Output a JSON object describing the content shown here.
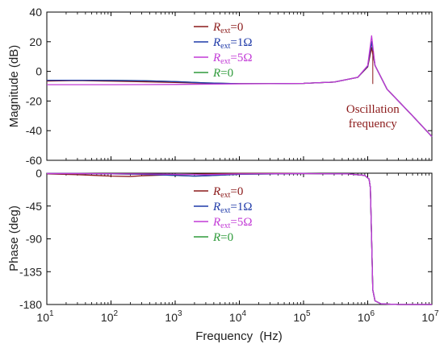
{
  "chart_data": [
    {
      "type": "line",
      "ylabel": "Magnitude (dB)",
      "xscale": "log",
      "xlim": [
        10,
        10000000
      ],
      "ylim": [
        -60,
        40
      ],
      "yticks": [
        -60,
        -40,
        -20,
        0,
        20,
        40
      ],
      "ytick_labels": [
        "-60",
        "-40",
        "-20",
        "0",
        "20",
        "40"
      ],
      "grid": false,
      "legend_position": "upper-center",
      "series": [
        {
          "name": "R_ext=0",
          "legend": {
            "sym": "R",
            "sub": "ext",
            "rest": "=0"
          },
          "color": "#8b1a1a",
          "x": [
            10,
            30,
            100,
            300,
            1000,
            3000,
            10000,
            30000,
            100000,
            300000,
            700000,
            1000000,
            1150000,
            1300000,
            2000000,
            5000000,
            10000000
          ],
          "y": [
            -6.5,
            -6.2,
            -6.6,
            -7.0,
            -7.5,
            -8.0,
            -8.3,
            -8.3,
            -8.1,
            -7.2,
            -4.0,
            3.0,
            16.0,
            4.0,
            -12.0,
            -30.0,
            -44.0
          ]
        },
        {
          "name": "R_ext=1Ω",
          "legend": {
            "sym": "R",
            "sub": "ext",
            "rest": "=1Ω"
          },
          "color": "#1f3aa8",
          "x": [
            10,
            30,
            100,
            300,
            1000,
            3000,
            10000,
            30000,
            100000,
            300000,
            700000,
            1000000,
            1150000,
            1300000,
            2000000,
            5000000,
            10000000
          ],
          "y": [
            -6.0,
            -6.0,
            -6.1,
            -6.3,
            -6.9,
            -7.8,
            -8.3,
            -8.3,
            -8.1,
            -7.2,
            -4.0,
            3.5,
            20.0,
            4.0,
            -12.0,
            -30.0,
            -44.0
          ]
        },
        {
          "name": "R_ext=5Ω",
          "legend": {
            "sym": "R",
            "sub": "ext",
            "rest": "=5Ω"
          },
          "color": "#c23ad6",
          "x": [
            10,
            30,
            100,
            300,
            1000,
            3000,
            10000,
            30000,
            100000,
            300000,
            700000,
            1000000,
            1150000,
            1300000,
            2000000,
            5000000,
            10000000
          ],
          "y": [
            -9.0,
            -9.0,
            -9.0,
            -8.9,
            -8.8,
            -8.6,
            -8.4,
            -8.3,
            -8.1,
            -7.2,
            -4.0,
            4.0,
            24.0,
            4.0,
            -12.0,
            -30.0,
            -44.0
          ]
        },
        {
          "name": "R=0",
          "legend": {
            "sym": "R",
            "sub": "",
            "rest": "=0"
          },
          "color": "#2e9a3a",
          "x": [
            10,
            30,
            100,
            300,
            1000,
            3000,
            10000,
            30000,
            100000,
            300000,
            700000,
            1000000,
            1150000,
            1300000,
            2000000,
            5000000,
            10000000
          ],
          "y": [
            -6.0,
            -6.0,
            -6.1,
            -6.3,
            -6.9,
            -7.8,
            -8.3,
            -8.3,
            -8.1,
            -7.2,
            -4.0,
            3.5,
            20.0,
            4.0,
            -12.0,
            -30.0,
            -44.0
          ]
        }
      ],
      "annotations": [
        {
          "text_lines": [
            "Oscillation",
            "frequency"
          ],
          "x": 1200000,
          "y": -28
        }
      ]
    },
    {
      "type": "line",
      "xlabel": "Frequency  (Hz)",
      "ylabel": "Phase (deg)",
      "xscale": "log",
      "xlim": [
        10,
        10000000
      ],
      "ylim": [
        -180,
        0
      ],
      "xticks": [
        10,
        100,
        1000,
        10000,
        100000,
        1000000,
        10000000
      ],
      "xtick_labels": [
        {
          "base": "10",
          "exp": "1"
        },
        {
          "base": "10",
          "exp": "2"
        },
        {
          "base": "10",
          "exp": "3"
        },
        {
          "base": "10",
          "exp": "4"
        },
        {
          "base": "10",
          "exp": "5"
        },
        {
          "base": "10",
          "exp": "6"
        },
        {
          "base": "10",
          "exp": "7"
        }
      ],
      "yticks": [
        -180,
        -135,
        -90,
        -45,
        0
      ],
      "ytick_labels": [
        "-180",
        "-135",
        "-90",
        "-45",
        "0"
      ],
      "grid": false,
      "legend_position": "upper-center",
      "series": [
        {
          "name": "R_ext=0",
          "legend": {
            "sym": "R",
            "sub": "ext",
            "rest": "=0"
          },
          "color": "#8b1a1a",
          "x": [
            10,
            30,
            100,
            200,
            300,
            1000,
            3000,
            10000,
            100000,
            500000,
            900000,
            1050000,
            1100000,
            1150000,
            1200000,
            1300000,
            1600000,
            3000000,
            10000000
          ],
          "y": [
            -1,
            -2,
            -4,
            -4.5,
            -3.5,
            -2,
            -1,
            -0.5,
            -0.5,
            -1,
            -3,
            -8,
            -20,
            -90,
            -160,
            -175,
            -179,
            -180,
            -180
          ]
        },
        {
          "name": "R_ext=1Ω",
          "legend": {
            "sym": "R",
            "sub": "ext",
            "rest": "=1Ω"
          },
          "color": "#1f3aa8",
          "x": [
            10,
            30,
            100,
            300,
            1000,
            2000,
            3000,
            10000,
            100000,
            500000,
            900000,
            1050000,
            1100000,
            1150000,
            1200000,
            1300000,
            1600000,
            3000000,
            10000000
          ],
          "y": [
            -0.5,
            -0.5,
            -1,
            -1.5,
            -3,
            -4,
            -3.5,
            -1.5,
            -0.5,
            -1,
            -3,
            -8,
            -20,
            -90,
            -160,
            -175,
            -179,
            -180,
            -180
          ]
        },
        {
          "name": "R_ext=5Ω",
          "legend": {
            "sym": "R",
            "sub": "ext",
            "rest": "=5Ω"
          },
          "color": "#c23ad6",
          "x": [
            10,
            30,
            100,
            300,
            1000,
            3000,
            10000,
            100000,
            500000,
            900000,
            1050000,
            1100000,
            1150000,
            1200000,
            1300000,
            1600000,
            3000000,
            10000000
          ],
          "y": [
            -0.5,
            -0.5,
            -0.8,
            -1,
            -1.5,
            -2,
            -1,
            -0.5,
            -1,
            -3,
            -8,
            -20,
            -90,
            -160,
            -175,
            -179,
            -180,
            -180
          ]
        },
        {
          "name": "R=0",
          "legend": {
            "sym": "R",
            "sub": "",
            "rest": "=0"
          },
          "color": "#2e9a3a",
          "x": [
            10,
            30,
            100,
            300,
            1000,
            2000,
            3000,
            10000,
            100000,
            500000,
            900000,
            1050000,
            1100000,
            1150000,
            1200000,
            1300000,
            1600000,
            3000000,
            10000000
          ],
          "y": [
            -0.5,
            -0.5,
            -1,
            -1.5,
            -3,
            -4,
            -3.5,
            -1.5,
            -0.5,
            -1,
            -3,
            -8,
            -20,
            -90,
            -160,
            -175,
            -179,
            -180,
            -180
          ]
        }
      ],
      "annotations": []
    }
  ]
}
